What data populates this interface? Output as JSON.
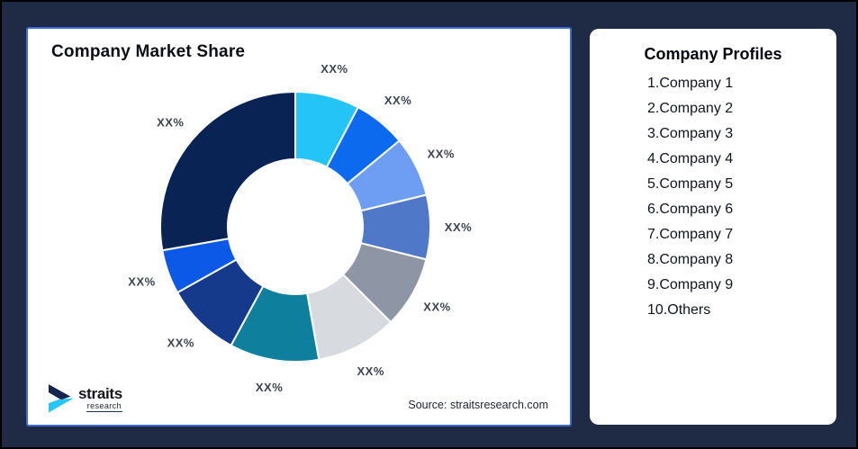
{
  "page": {
    "background_color": "#1f2a44",
    "frame_border_color": "#000000"
  },
  "chart_panel": {
    "title": "Company Market Share",
    "source_note": "Source: straitsresearch.com",
    "border_color": "#3d6be0"
  },
  "logo": {
    "name": "straits",
    "sub": "research",
    "mark_navy": "#14264e",
    "mark_cyan": "#29c5f4"
  },
  "profiles_card": {
    "title": "Company Profiles",
    "items": [
      {
        "label": "1.Company 1"
      },
      {
        "label": "2.Company 2"
      },
      {
        "label": "3.Company 3"
      },
      {
        "label": "4.Company 4"
      },
      {
        "label": "5.Company 5"
      },
      {
        "label": "6.Company 6"
      },
      {
        "label": "7.Company 7"
      },
      {
        "label": "8.Company 8"
      },
      {
        "label": "9.Company 9"
      },
      {
        "label": "10.Others"
      }
    ]
  },
  "chart_data": {
    "type": "pie",
    "donut": true,
    "title": "Company Market Share",
    "start_angle_deg": 0,
    "direction": "clockwise",
    "inner_radius_ratio": 0.5,
    "label_color": "#3d4450",
    "note": "All slice data labels are shown as placeholder text XX%",
    "segments": [
      {
        "name": "Company 1",
        "label": "XX%",
        "value_pct": 7.7,
        "color": "#25c4f7"
      },
      {
        "name": "Company 2",
        "label": "XX%",
        "value_pct": 6.3,
        "color": "#0b6aee"
      },
      {
        "name": "Company 3",
        "label": "XX%",
        "value_pct": 7.2,
        "color": "#6d9ef3"
      },
      {
        "name": "Company 4",
        "label": "XX%",
        "value_pct": 7.7,
        "color": "#4f78c8"
      },
      {
        "name": "Company 5",
        "label": "XX%",
        "value_pct": 8.6,
        "color": "#8e96a6"
      },
      {
        "name": "Company 6",
        "label": "XX%",
        "value_pct": 9.7,
        "color": "#d7dadf"
      },
      {
        "name": "Company 7",
        "label": "XX%",
        "value_pct": 10.7,
        "color": "#0e7f9d"
      },
      {
        "name": "Company 8",
        "label": "XX%",
        "value_pct": 9.0,
        "color": "#15398b"
      },
      {
        "name": "Company 9",
        "label": "XX%",
        "value_pct": 5.3,
        "color": "#0c59e8"
      },
      {
        "name": "Others",
        "label": "XX%",
        "value_pct": 27.8,
        "color": "#0a2355"
      }
    ]
  }
}
